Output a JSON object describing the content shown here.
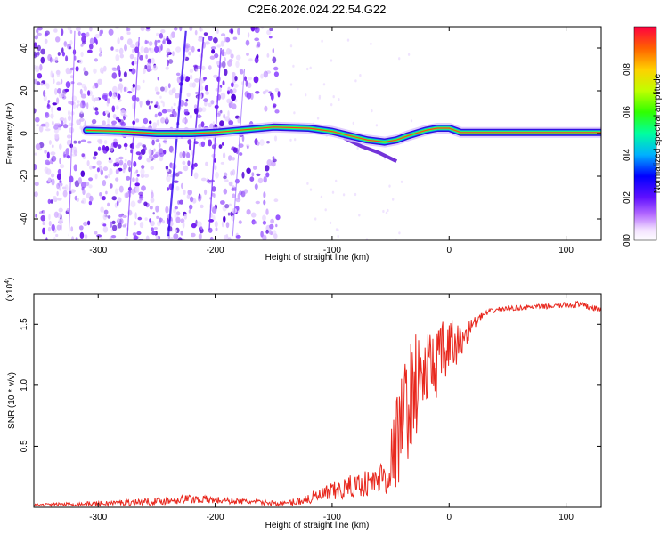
{
  "title": "C2E6.2026.024.22.54.G22",
  "colors": {
    "snr_line": "#e8281e",
    "axis": "#000000"
  },
  "chart_data": [
    {
      "type": "heatmap",
      "name": "spectrogram",
      "xlabel": "Height of straight line (km)",
      "ylabel": "Frequency (Hz)",
      "xlim": [
        -355,
        130
      ],
      "ylim": [
        -50,
        50
      ],
      "x_ticks": [
        -300,
        -200,
        -100,
        0,
        100
      ],
      "x_tick_labels": [
        "-300",
        "-200",
        "-100",
        "0",
        "100"
      ],
      "y_ticks": [
        -40,
        -20,
        0,
        20,
        40
      ],
      "y_tick_labels": [
        "-40",
        "-20",
        "0",
        "20",
        "40"
      ],
      "colorbar": {
        "label": "Normalized spectral amplitude",
        "range": [
          0,
          1
        ],
        "ticks": [
          0.0,
          0.2,
          0.4,
          0.6,
          0.8
        ],
        "tick_labels": [
          "0.0",
          "0.2",
          "0.4",
          "0.6",
          "0.8"
        ]
      },
      "carrier_track": [
        {
          "x": -310,
          "f": 1.5
        },
        {
          "x": -280,
          "f": 1.0
        },
        {
          "x": -250,
          "f": 0.0
        },
        {
          "x": -220,
          "f": 0.0
        },
        {
          "x": -200,
          "f": 0.5
        },
        {
          "x": -170,
          "f": 2.0
        },
        {
          "x": -150,
          "f": 3.0
        },
        {
          "x": -120,
          "f": 2.5
        },
        {
          "x": -100,
          "f": 1.0
        },
        {
          "x": -85,
          "f": -1.0
        },
        {
          "x": -70,
          "f": -3.0
        },
        {
          "x": -55,
          "f": -4.0
        },
        {
          "x": -45,
          "f": -3.0
        },
        {
          "x": -35,
          "f": -1.0
        },
        {
          "x": -20,
          "f": 1.5
        },
        {
          "x": -10,
          "f": 2.5
        },
        {
          "x": 0,
          "f": 2.5
        },
        {
          "x": 10,
          "f": 0.5
        },
        {
          "x": 130,
          "f": 0.5
        }
      ],
      "noise_region_x": [
        -355,
        -145
      ]
    },
    {
      "type": "line",
      "name": "snr",
      "xlabel": "Height of straight line (km)",
      "ylabel": "SNR (10 * v/v)",
      "y_scale_label": "(x10",
      "y_scale_exp": "4",
      "y_scale_close": ")",
      "xlim": [
        -355,
        130
      ],
      "ylim": [
        0,
        1.75
      ],
      "x_ticks": [
        -300,
        -200,
        -100,
        0,
        100
      ],
      "x_tick_labels": [
        "-300",
        "-200",
        "-100",
        "0",
        "100"
      ],
      "y_ticks": [
        0.5,
        1.0,
        1.5
      ],
      "y_tick_labels": [
        "0.5",
        "1.0",
        "1.5"
      ],
      "x": [
        -355,
        -300,
        -250,
        -220,
        -200,
        -160,
        -140,
        -120,
        -100,
        -80,
        -60,
        -50,
        -40,
        -30,
        -20,
        -10,
        0,
        10,
        20,
        30,
        40,
        50,
        70,
        90,
        110,
        130
      ],
      "y": [
        0.02,
        0.03,
        0.05,
        0.07,
        0.06,
        0.04,
        0.03,
        0.07,
        0.12,
        0.18,
        0.22,
        0.35,
        0.7,
        1.0,
        1.1,
        1.2,
        1.3,
        1.35,
        1.5,
        1.58,
        1.62,
        1.63,
        1.64,
        1.65,
        1.66,
        1.62
      ],
      "spread": [
        0.01,
        0.02,
        0.03,
        0.04,
        0.03,
        0.02,
        0.02,
        0.05,
        0.08,
        0.1,
        0.12,
        0.3,
        0.45,
        0.45,
        0.35,
        0.3,
        0.25,
        0.15,
        0.05,
        0.03,
        0.02,
        0.02,
        0.02,
        0.02,
        0.03,
        0.02
      ]
    }
  ]
}
